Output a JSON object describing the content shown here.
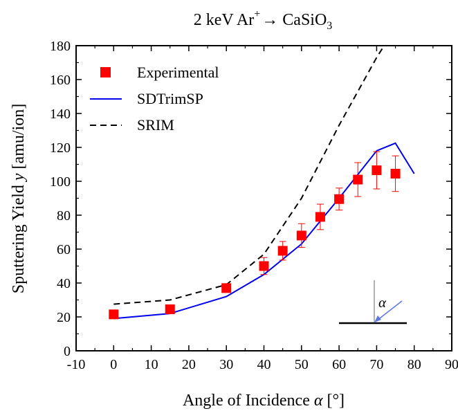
{
  "chart_data": {
    "type": "line",
    "title": {
      "prefix": "2 keV Ar",
      "sup": "+",
      "arrow": "→",
      "compound_main": "CaSiO",
      "compound_sub": "3"
    },
    "xlabel": {
      "text": "Angle of Incidence ",
      "symbol": "α",
      "unit": " [°]"
    },
    "ylabel": {
      "text": "Sputtering Yield ",
      "symbol": "y",
      "unit": " [amu/ion]"
    },
    "xlim": [
      -10,
      90
    ],
    "ylim": [
      0,
      180
    ],
    "xticks": [
      -10,
      0,
      10,
      20,
      30,
      40,
      50,
      60,
      70,
      80,
      90
    ],
    "yticks": [
      0,
      20,
      40,
      60,
      80,
      100,
      120,
      140,
      160,
      180
    ],
    "grid": false,
    "legend_position": "top-left",
    "inset_label": "α",
    "series": [
      {
        "name": "Experimental",
        "kind": "scatter",
        "marker": "square",
        "color": "#ff0000",
        "x": [
          0,
          15,
          30,
          40,
          45,
          50,
          55,
          60,
          65,
          70,
          75
        ],
        "y": [
          21.5,
          24.5,
          37,
          50,
          59,
          68,
          79,
          89.5,
          101,
          106.5,
          104.5
        ],
        "error": [
          0,
          0,
          0,
          5,
          5.5,
          7,
          7.5,
          6.5,
          10,
          11,
          10.5
        ]
      },
      {
        "name": "SDTrimSP",
        "kind": "line",
        "dash": "solid",
        "color": "#0000ee",
        "x": [
          0,
          15,
          30,
          40,
          50,
          60,
          70,
          75,
          80
        ],
        "y": [
          19,
          22,
          32,
          45,
          63,
          90,
          118,
          122.5,
          104.5
        ]
      },
      {
        "name": "SRIM",
        "kind": "line",
        "dash": "dashed",
        "color": "#000000",
        "x": [
          0,
          15,
          30,
          40,
          50,
          60,
          70,
          72
        ],
        "y": [
          27.5,
          30,
          39,
          57,
          90,
          133,
          173,
          180
        ]
      }
    ]
  }
}
